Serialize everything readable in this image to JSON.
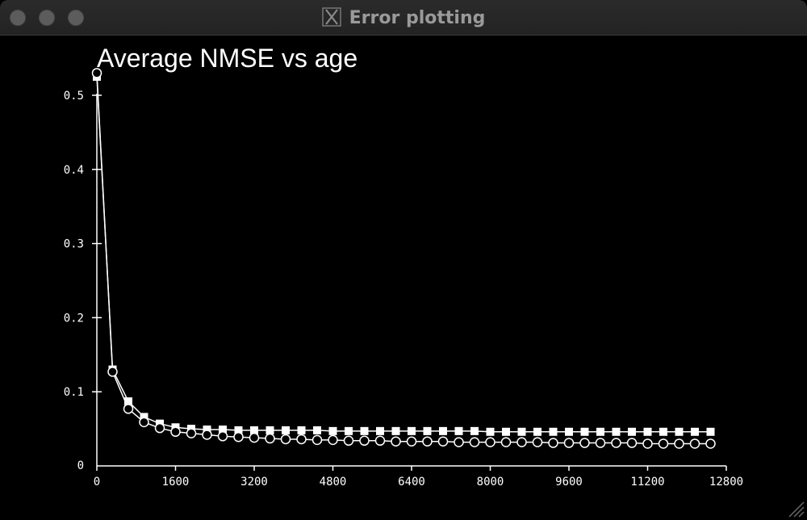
{
  "window": {
    "title": "Error plotting",
    "icon": "x11-logo-icon"
  },
  "chart_data": {
    "type": "line",
    "title": "Average NMSE vs age",
    "xlabel": "",
    "ylabel": "",
    "xlim": [
      0,
      12800
    ],
    "ylim": [
      0,
      0.5
    ],
    "x_ticks": [
      "0",
      "1600",
      "3200",
      "4800",
      "6400",
      "8000",
      "9600",
      "11200",
      "12800"
    ],
    "y_ticks": [
      "0",
      "0.1",
      "0.2",
      "0.3",
      "0.4",
      "0.5"
    ],
    "x_tick_values": [
      0,
      1600,
      3200,
      4800,
      6400,
      8000,
      9600,
      11200,
      12800
    ],
    "y_tick_values": [
      0,
      0.1,
      0.2,
      0.3,
      0.4,
      0.5
    ],
    "grid": false,
    "colors": {
      "background": "#000000",
      "foreground": "#ffffff"
    },
    "x": [
      0,
      320,
      640,
      960,
      1280,
      1600,
      1920,
      2240,
      2560,
      2880,
      3200,
      3520,
      3840,
      4160,
      4480,
      4800,
      5120,
      5440,
      5760,
      6080,
      6400,
      6720,
      7040,
      7360,
      7680,
      8000,
      8320,
      8640,
      8960,
      9280,
      9600,
      9920,
      10240,
      10560,
      10880,
      11200,
      11520,
      11840,
      12160,
      12480
    ],
    "series": [
      {
        "marker": "filled-square",
        "values": [
          0.525,
          0.13,
          0.087,
          0.066,
          0.057,
          0.052,
          0.05,
          0.049,
          0.049,
          0.048,
          0.048,
          0.048,
          0.048,
          0.048,
          0.048,
          0.047,
          0.047,
          0.047,
          0.047,
          0.047,
          0.047,
          0.047,
          0.047,
          0.047,
          0.047,
          0.046,
          0.046,
          0.046,
          0.046,
          0.046,
          0.046,
          0.046,
          0.046,
          0.046,
          0.046,
          0.046,
          0.046,
          0.046,
          0.046,
          0.046
        ]
      },
      {
        "marker": "hollow-circle",
        "values": [
          0.53,
          0.127,
          0.077,
          0.059,
          0.051,
          0.046,
          0.044,
          0.042,
          0.04,
          0.039,
          0.038,
          0.037,
          0.036,
          0.036,
          0.035,
          0.035,
          0.034,
          0.034,
          0.034,
          0.033,
          0.033,
          0.033,
          0.033,
          0.032,
          0.032,
          0.032,
          0.032,
          0.032,
          0.032,
          0.031,
          0.031,
          0.031,
          0.031,
          0.031,
          0.031,
          0.03,
          0.03,
          0.03,
          0.03,
          0.03
        ]
      }
    ]
  }
}
